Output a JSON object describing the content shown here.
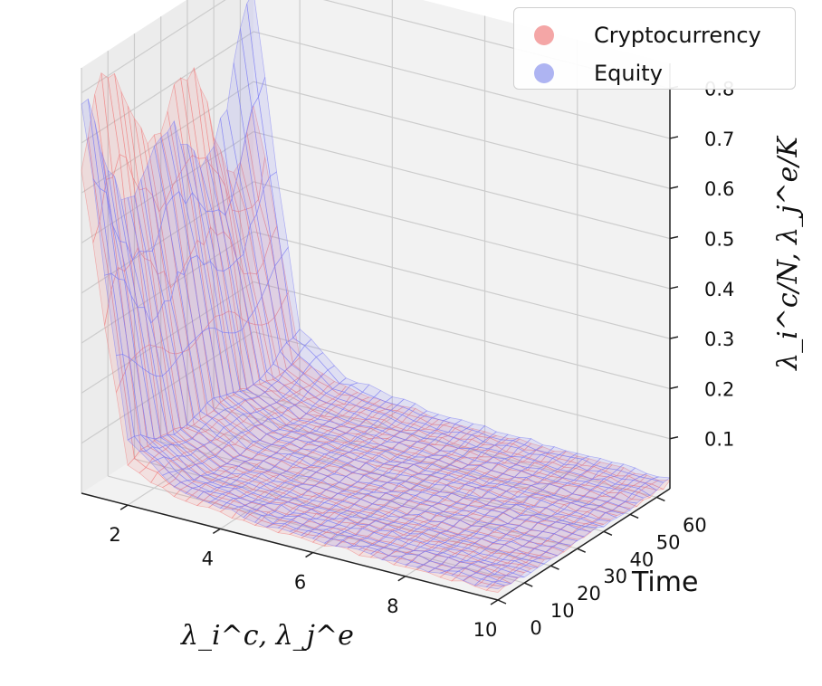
{
  "chart_data": {
    "type": "surface3d",
    "title": "",
    "xlabel": "λ_i^c, λ_j^e",
    "ylabel": "Time",
    "zlabel": "λ_i^c/N, λ_j^e/K",
    "x_ticks": [
      2,
      4,
      6,
      8,
      10
    ],
    "y_ticks": [
      0,
      10,
      20,
      30,
      40,
      50,
      60
    ],
    "z_ticks": [
      0.1,
      0.2,
      0.3,
      0.4,
      0.5,
      0.6,
      0.7,
      0.8
    ],
    "x_tick_labels": [
      "2",
      "4",
      "6",
      "8",
      "10"
    ],
    "y_tick_labels": [
      "0",
      "10",
      "20",
      "30",
      "40",
      "50",
      "60"
    ],
    "z_tick_labels": [
      "0.1",
      "0.2",
      "0.3",
      "0.4",
      "0.5",
      "0.6",
      "0.7",
      "0.8"
    ],
    "xlim": [
      1,
      10
    ],
    "ylim": [
      0,
      65
    ],
    "zlim": [
      0,
      0.85
    ],
    "grid": true,
    "legend_position": "top-right",
    "series": [
      {
        "name": "Cryptocurrency",
        "color": "#f08080",
        "profile_by_x": [
          {
            "x": 1,
            "z_min": 0.45,
            "z_max": 0.84
          },
          {
            "x": 2,
            "z_min": 0.06,
            "z_max": 0.1
          },
          {
            "x": 3,
            "z_min": 0.03,
            "z_max": 0.05
          },
          {
            "x": 5,
            "z_min": 0.02,
            "z_max": 0.03
          },
          {
            "x": 10,
            "z_min": 0.01,
            "z_max": 0.02
          }
        ]
      },
      {
        "name": "Equity",
        "color": "#7a7af5",
        "profile_by_x": [
          {
            "x": 1,
            "z_min": 0.45,
            "z_max": 0.78
          },
          {
            "x": 2,
            "z_min": 0.07,
            "z_max": 0.13
          },
          {
            "x": 3,
            "z_min": 0.03,
            "z_max": 0.06
          },
          {
            "x": 5,
            "z_min": 0.02,
            "z_max": 0.03
          },
          {
            "x": 10,
            "z_min": 0.01,
            "z_max": 0.02
          }
        ]
      }
    ]
  },
  "legend": {
    "items": [
      {
        "label": "Cryptocurrency",
        "color": "#f4a6a6"
      },
      {
        "label": "Equity",
        "color": "#aeb4f2"
      }
    ]
  }
}
